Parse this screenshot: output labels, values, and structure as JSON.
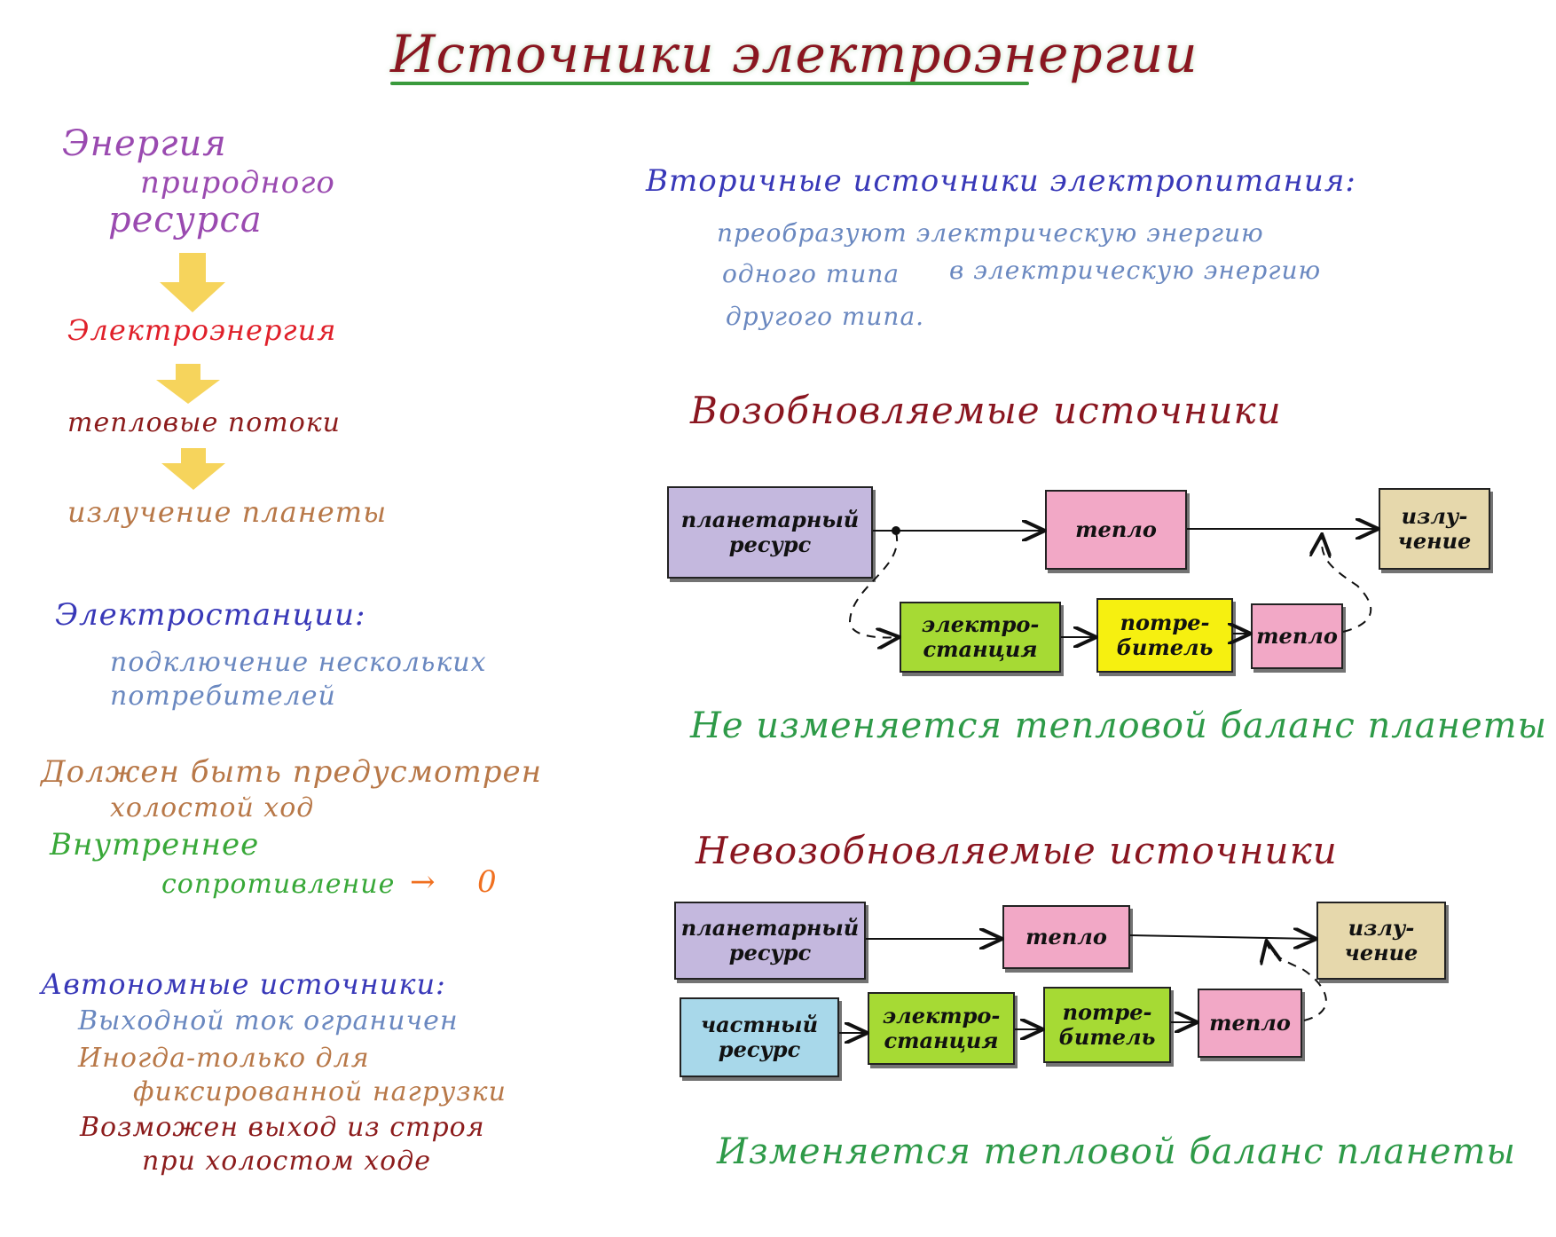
{
  "title": "Источники электроэнергии",
  "left": {
    "chain": [
      "Энергия",
      "природного",
      "ресурса",
      "Электроэнергия",
      "тепловые потоки",
      "излучение планеты"
    ],
    "stations": {
      "heading": "Электростанции:",
      "line1": "подключение нескольких",
      "line2": "потребителей"
    },
    "idle": {
      "line1": "Должен быть предусмотрен",
      "line2": "холостой ход"
    },
    "resistance": {
      "line1": "Внутреннее",
      "line2": "сопротивление",
      "arrow": "→",
      "value": "0"
    },
    "autonomous": {
      "heading": "Автономные источники:",
      "item1": "Выходной ток ограничен",
      "item2a": "Иногда-только для",
      "item2b": "фиксированной нагрузки",
      "item3a": "Возможен выход из строя",
      "item3b": "при холостом ходе"
    }
  },
  "right": {
    "secondary": {
      "heading": "Вторичные источники электропитания:",
      "line1": "преобразуют электрическую энергию",
      "line2a": "одного типа",
      "line2b": "в электрическую энергию",
      "line3": "другого типа."
    },
    "renewable": {
      "heading": "Возобновляемые источники",
      "boxes": {
        "resource": "планетарный\nресурс",
        "heat": "тепло",
        "radiation": "излу-\nчение",
        "station": "электро-\nстанция",
        "consumer": "потре-\nбитель",
        "heat2": "тепло"
      },
      "conclusion": "Не изменяется тепловой баланс планеты"
    },
    "nonrenewable": {
      "heading": "Невозобновляемые источники",
      "boxes": {
        "resource": "планетарный\nресурс",
        "heat": "тепло",
        "radiation": "излу-\nчение",
        "private": "частный\nресурс",
        "station": "электро-\nстанция",
        "consumer": "потре-\nбитель",
        "heat2": "тепло"
      },
      "conclusion": "Изменяется тепловой баланс планеты"
    }
  },
  "colors": {
    "title": "#8a1620",
    "arrow_yellow": "#f4cc40",
    "underline": "#3a9a3c"
  }
}
